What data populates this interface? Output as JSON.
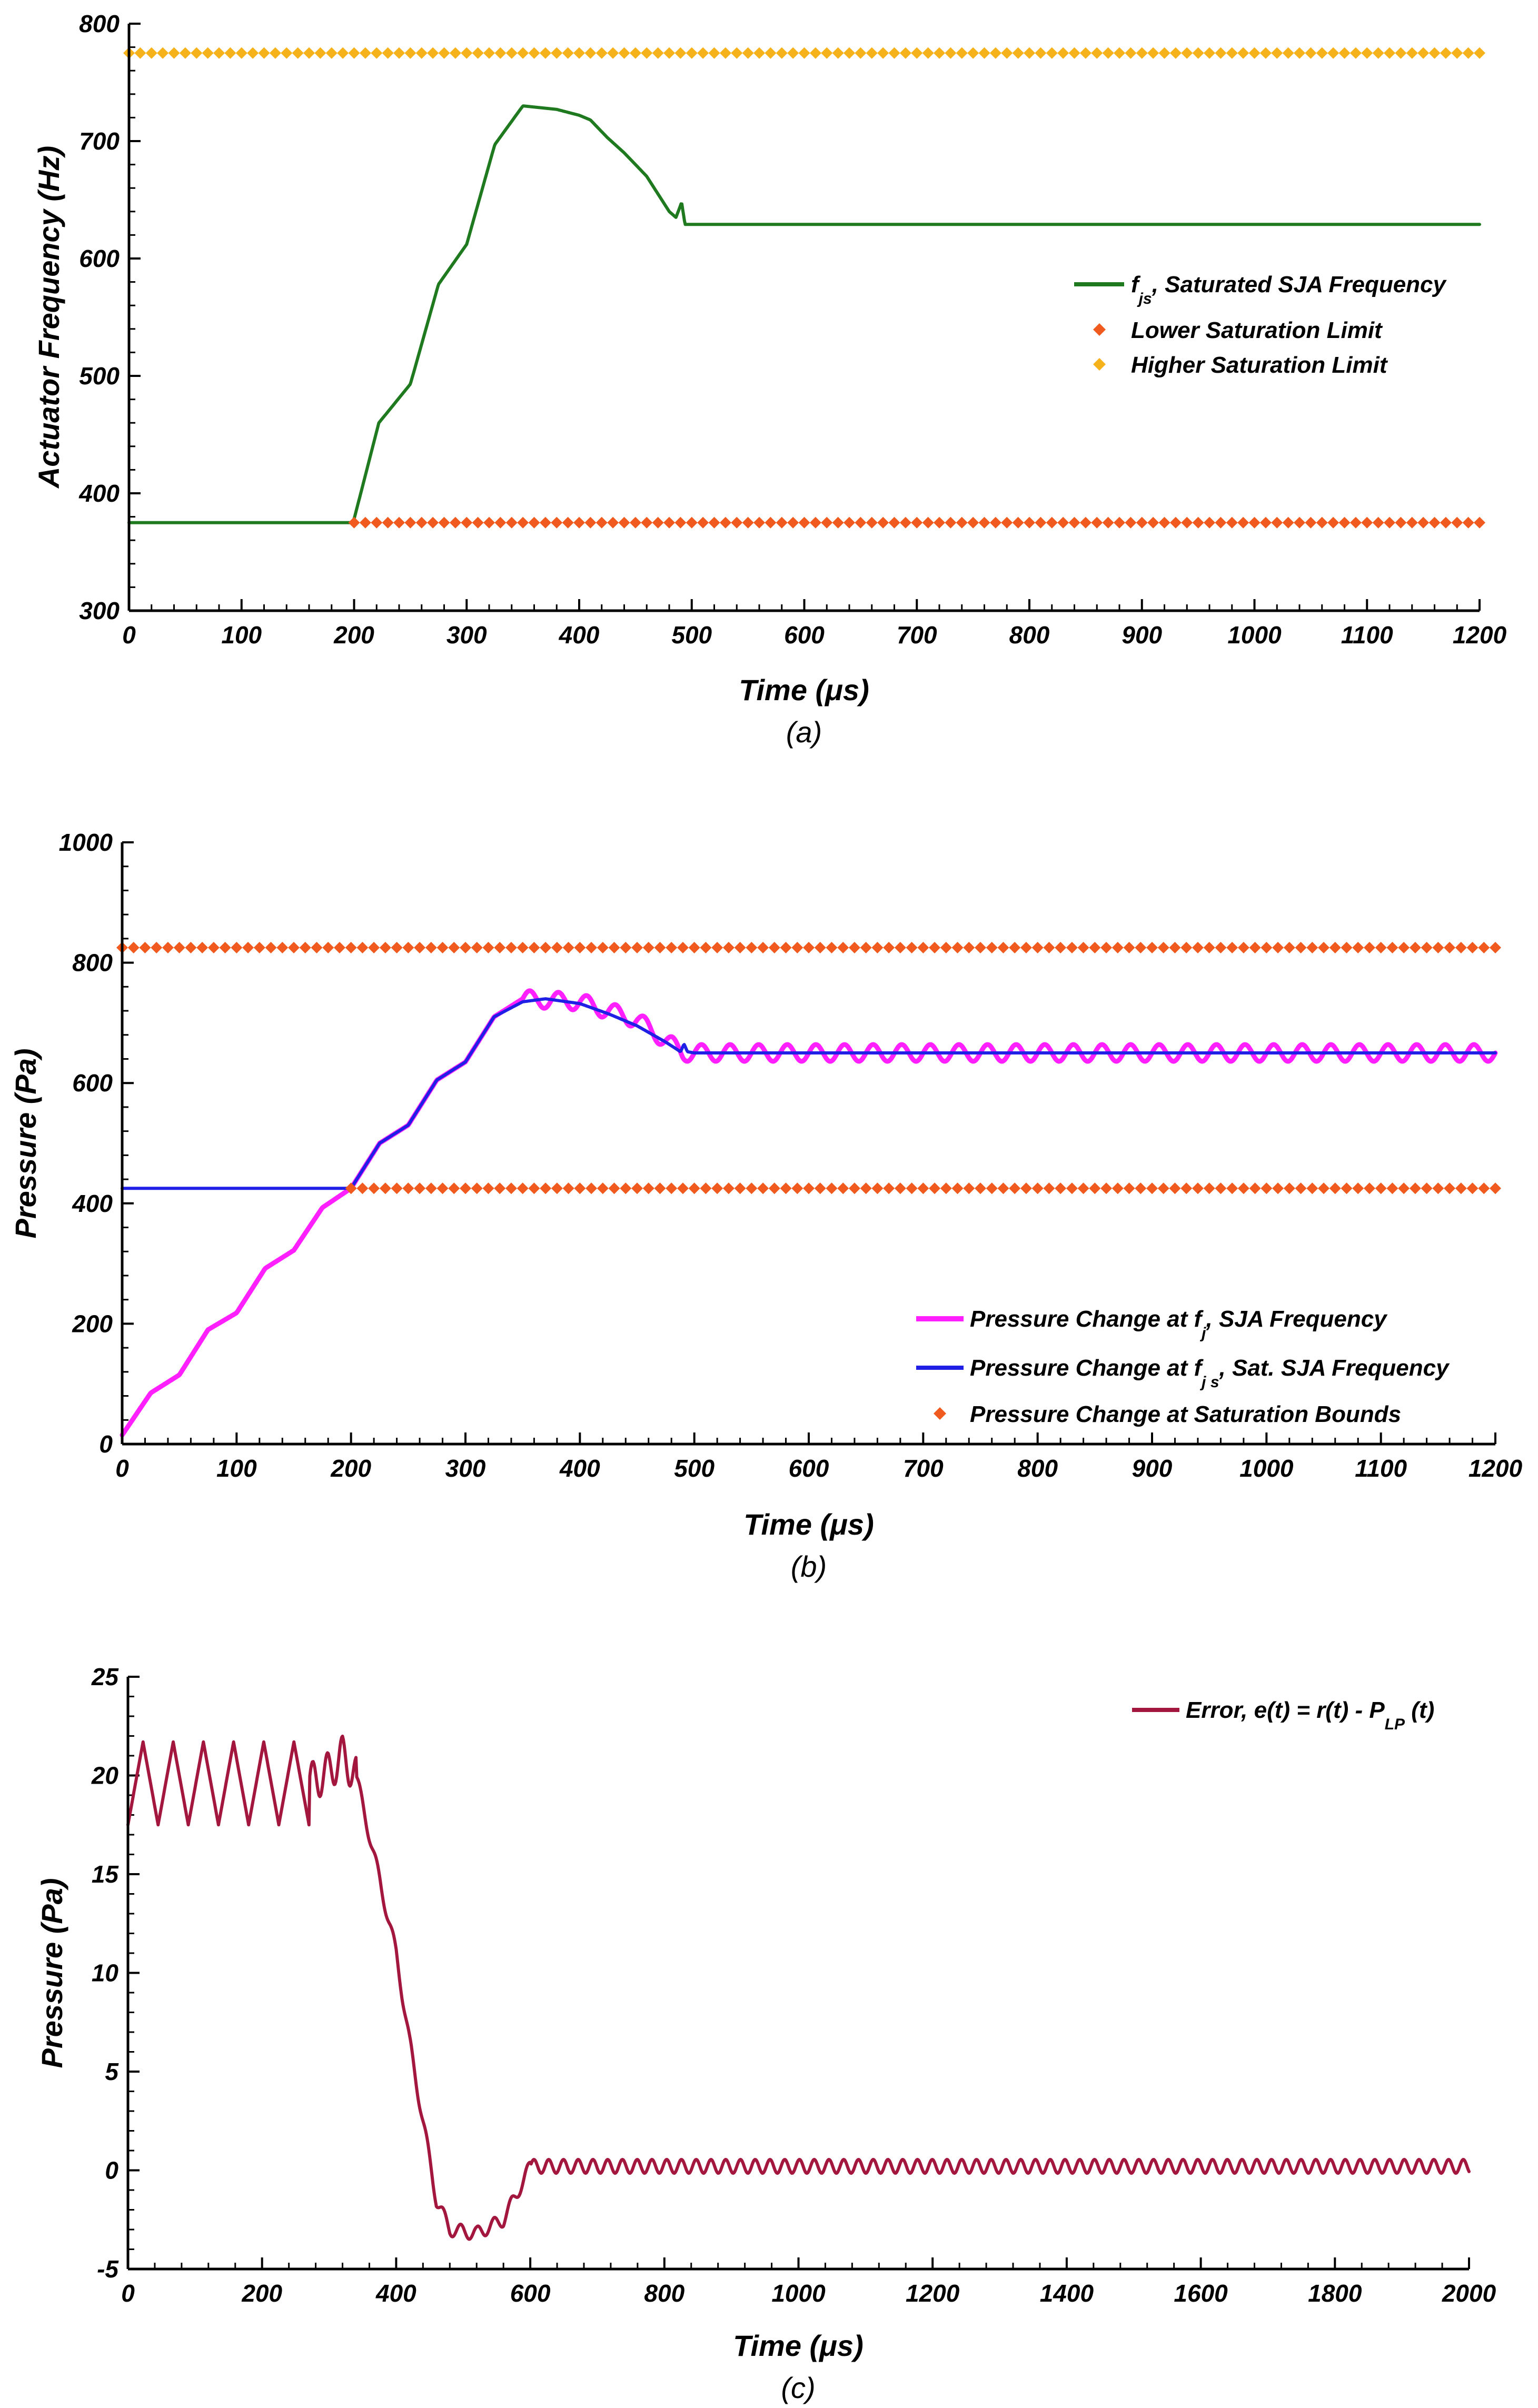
{
  "chart_data": [
    {
      "type": "line",
      "panel_label": "(a)",
      "xlabel": "Time (μs)",
      "ylabel": "Actuator Frequency  (Hz)",
      "xlim": [
        0,
        1200
      ],
      "ylim": [
        300,
        800
      ],
      "xticks": [
        0,
        100,
        200,
        300,
        400,
        500,
        600,
        700,
        800,
        900,
        1000,
        1100,
        1200
      ],
      "yticks": [
        300,
        400,
        500,
        600,
        700,
        800
      ],
      "legend_position": "right",
      "series": [
        {
          "name": "Saturated SJA Frequency",
          "legend_symbol": "f",
          "legend_subscript": "js",
          "legend_text": ", Saturated SJA Frequency",
          "style": "line",
          "color": "#1f7a1f",
          "x": [
            0,
            198,
            200,
            222,
            250,
            275,
            300,
            325,
            350,
            360,
            380,
            400,
            410,
            425,
            440,
            460,
            480,
            486,
            490,
            491,
            494,
            500,
            1200
          ],
          "y": [
            375,
            375,
            378,
            460,
            493,
            578,
            612,
            697,
            730,
            729,
            727,
            722,
            718,
            703,
            690,
            670,
            640,
            635,
            645,
            648,
            629,
            629,
            629
          ]
        },
        {
          "name": "Lower Saturation Limit",
          "legend_text": "Lower Saturation Limit",
          "style": "marker",
          "color": "#f05a1e",
          "x_start": 200,
          "x_end": 1200,
          "x_step": 10,
          "y": 375
        },
        {
          "name": "Higher Saturation Limit",
          "legend_text": "Higher Saturation Limit",
          "style": "marker",
          "color": "#f5b21b",
          "x_start": 0,
          "x_end": 1200,
          "x_step": 10,
          "y": 775
        }
      ]
    },
    {
      "type": "line",
      "panel_label": "(b)",
      "xlabel": "Time (μs)",
      "ylabel": "Pressure (Pa)",
      "xlim": [
        0,
        1200
      ],
      "ylim": [
        0,
        1000
      ],
      "xticks": [
        0,
        100,
        200,
        300,
        400,
        500,
        600,
        700,
        800,
        900,
        1000,
        1100,
        1200
      ],
      "yticks": [
        0,
        200,
        400,
        600,
        800,
        1000
      ],
      "legend_position": "bottom-right",
      "series": [
        {
          "name": "Pressure Change at fj, SJA Frequency",
          "legend_prefix": "Pressure Change at ",
          "legend_symbol": "f",
          "legend_subscript": "j",
          "legend_text": ", SJA Frequency",
          "style": "line",
          "color": "#ff1fff",
          "x": [
            0,
            25,
            50,
            75,
            100,
            125,
            150,
            175,
            200,
            225,
            250,
            275,
            300,
            325,
            350,
            400,
            450,
            490,
            500,
            1200
          ],
          "y": [
            15,
            85,
            115,
            190,
            218,
            292,
            322,
            393,
            425,
            500,
            530,
            605,
            635,
            710,
            740,
            735,
            705,
            650,
            650,
            650
          ],
          "oscillation": {
            "start": 350,
            "amplitude": 14,
            "period": 25
          }
        },
        {
          "name": "Pressure Change at fjs, Sat. SJA Frequency",
          "legend_prefix": "Pressure Change at ",
          "legend_symbol": "f",
          "legend_subscript": "j s",
          "legend_text": ", Sat. SJA Frequency",
          "style": "line",
          "color": "#1f1fe6",
          "x": [
            0,
            200,
            225,
            250,
            275,
            300,
            325,
            350,
            370,
            400,
            425,
            450,
            475,
            488,
            491,
            494,
            500,
            1200
          ],
          "y": [
            425,
            425,
            500,
            530,
            605,
            635,
            710,
            735,
            740,
            732,
            715,
            695,
            668,
            652,
            665,
            652,
            650,
            650
          ]
        },
        {
          "name": "Pressure Change at Saturation Bounds",
          "legend_text": "Pressure Change at Saturation Bounds",
          "style": "marker",
          "color": "#f05a1e",
          "markers": [
            {
              "x_start": 200,
              "x_end": 1200,
              "x_step": 10,
              "y": 425
            },
            {
              "x_start": 0,
              "x_end": 1200,
              "x_step": 10,
              "y": 825
            }
          ]
        }
      ]
    },
    {
      "type": "line",
      "panel_label": "(c)",
      "xlabel": "Time (μs)",
      "ylabel": "Pressure (Pa)",
      "xlim": [
        0,
        2000
      ],
      "ylim": [
        -5,
        25
      ],
      "xticks": [
        0,
        200,
        400,
        600,
        800,
        1000,
        1200,
        1400,
        1600,
        1800,
        2000
      ],
      "yticks": [
        -5,
        0,
        5,
        10,
        15,
        20,
        25
      ],
      "legend_position": "top-right",
      "series": [
        {
          "name": "Error, e(t) = r(t) - PLP (t)",
          "legend_text": "Error, e(t) = r(t) - P",
          "legend_subscript": "LP",
          "legend_suffix": " (t)",
          "style": "line",
          "color": "#a3173f",
          "x": [
            0,
            270,
            300,
            320,
            340,
            360,
            380,
            400,
            420,
            440,
            460,
            480,
            520,
            560,
            590,
            600,
            2000
          ],
          "y": [
            19.6,
            19.6,
            20.2,
            21.0,
            20.0,
            17.0,
            14.0,
            11.0,
            6.5,
            2.5,
            -1.5,
            -3.0,
            -3.2,
            -2.5,
            -0.5,
            0.2,
            0.2
          ],
          "oscillation": [
            {
              "from": 0,
              "to": 270,
              "amplitude": 2.1,
              "period": 45,
              "shape": "triangle"
            },
            {
              "from": 270,
              "to": 340,
              "amplitude": 1.0,
              "period": 22,
              "shape": "sine"
            },
            {
              "from": 340,
              "to": 600,
              "amplitude": 0.35,
              "period": 25,
              "shape": "sine"
            },
            {
              "from": 600,
              "to": 2000,
              "amplitude": 0.35,
              "period": 22,
              "shape": "sine"
            }
          ]
        }
      ]
    }
  ]
}
